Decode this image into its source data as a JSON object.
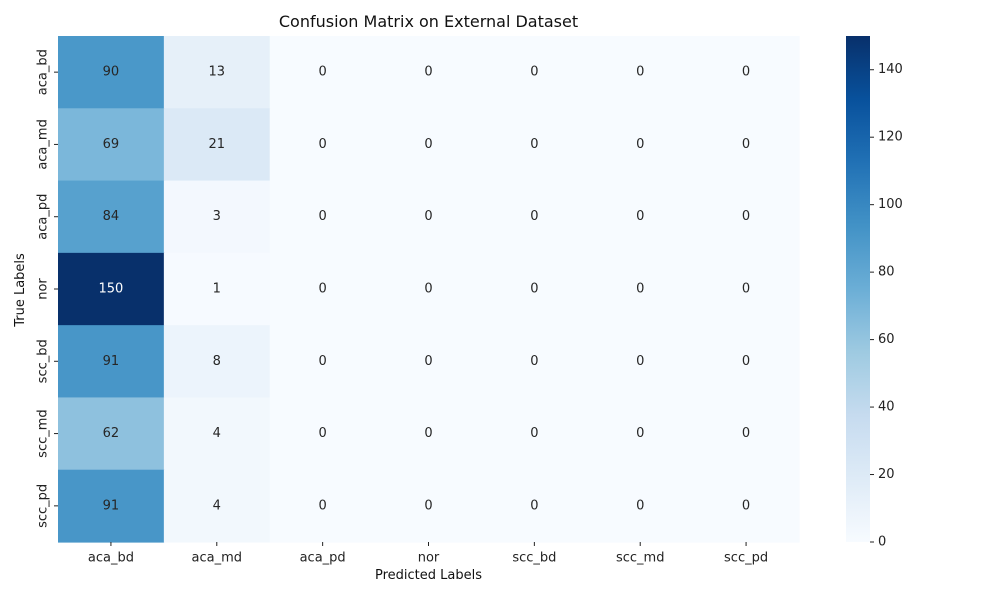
{
  "chart_data": {
    "type": "heatmap",
    "title": "Confusion Matrix on External Dataset",
    "xlabel": "Predicted Labels",
    "ylabel": "True Labels",
    "x_categories": [
      "aca_bd",
      "aca_md",
      "aca_pd",
      "nor",
      "scc_bd",
      "scc_md",
      "scc_pd"
    ],
    "y_categories": [
      "aca_bd",
      "aca_md",
      "aca_pd",
      "nor",
      "scc_bd",
      "scc_md",
      "scc_pd"
    ],
    "values": [
      [
        90,
        13,
        0,
        0,
        0,
        0,
        0
      ],
      [
        69,
        21,
        0,
        0,
        0,
        0,
        0
      ],
      [
        84,
        3,
        0,
        0,
        0,
        0,
        0
      ],
      [
        150,
        1,
        0,
        0,
        0,
        0,
        0
      ],
      [
        91,
        8,
        0,
        0,
        0,
        0,
        0
      ],
      [
        62,
        4,
        0,
        0,
        0,
        0,
        0
      ],
      [
        91,
        4,
        0,
        0,
        0,
        0,
        0
      ]
    ],
    "colorbar": {
      "colormap": "Blues",
      "min": 0,
      "max": 150,
      "ticks": [
        0,
        20,
        40,
        60,
        80,
        100,
        120,
        140
      ]
    },
    "annotations": true,
    "grid": false
  }
}
